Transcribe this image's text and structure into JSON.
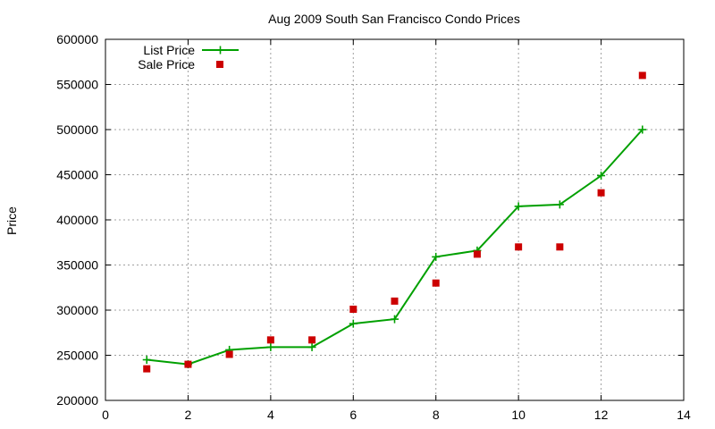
{
  "chart_data": {
    "type": "line",
    "title": "Aug 2009 South San Francisco Condo Prices",
    "xlabel": "",
    "ylabel": "Price",
    "xlim": [
      0,
      14
    ],
    "ylim": [
      200000,
      600000
    ],
    "xticks": [
      0,
      2,
      4,
      6,
      8,
      10,
      12,
      14
    ],
    "yticks": [
      200000,
      250000,
      300000,
      350000,
      400000,
      450000,
      500000,
      550000,
      600000
    ],
    "grid": true,
    "legend_position": "top-left",
    "series": [
      {
        "name": "List Price",
        "style": "lines+crosses",
        "color": "#00a000",
        "x": [
          1,
          2,
          3,
          4,
          5,
          6,
          7,
          8,
          9,
          10,
          11,
          12,
          13
        ],
        "y": [
          245000,
          240000,
          256000,
          259000,
          259000,
          285000,
          290000,
          359000,
          366000,
          415000,
          417000,
          449000,
          500000
        ]
      },
      {
        "name": "Sale Price",
        "style": "squares",
        "color": "#cc0000",
        "x": [
          1,
          2,
          3,
          4,
          5,
          6,
          7,
          8,
          9,
          10,
          11,
          12,
          13
        ],
        "y": [
          235000,
          240000,
          251000,
          267000,
          267000,
          301000,
          310000,
          330000,
          362000,
          370000,
          370000,
          430000,
          560000
        ]
      }
    ]
  }
}
